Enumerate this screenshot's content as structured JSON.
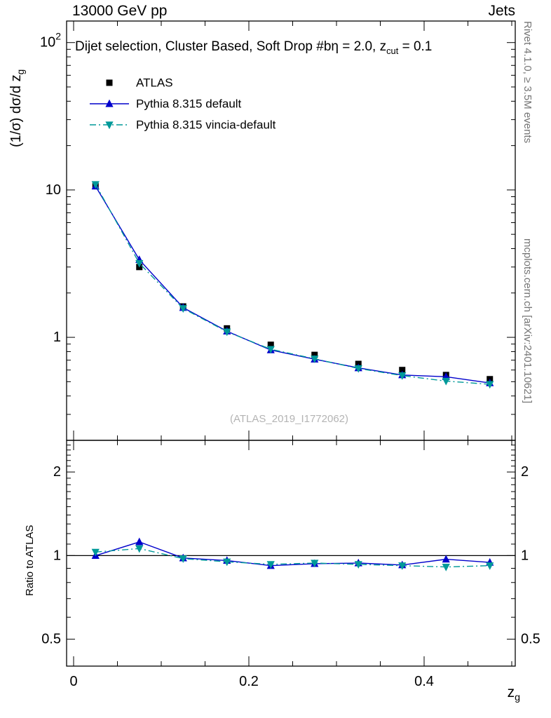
{
  "header": {
    "left": "13000 GeV pp",
    "right": "Jets"
  },
  "right_margin": {
    "top_text": "Rivet 4.1.0, ≥ 3.5M events",
    "bottom_text": "mcplots.cern.ch [arXiv:2401.10621]"
  },
  "watermark": "(ATLAS_2019_I1772062)",
  "main_panel": {
    "title_pre": "Dijet selection, Cluster Based, Soft Drop #bη = 2.0, z",
    "title_sub": "cut",
    "title_post": " = 0.1",
    "ylabel_pre": "(1/σ) dσ/d z",
    "ylabel_sub": "g"
  },
  "ratio_panel": {
    "ylabel": "Ratio to ATLAS"
  },
  "x_axis": {
    "label_pre": "z",
    "label_sub": "g"
  },
  "legend": [
    {
      "label": "ATLAS",
      "marker": "square",
      "color": "#000000",
      "line": "none"
    },
    {
      "label": "Pythia 8.315 default",
      "marker": "triangle-up",
      "color": "#0000cc",
      "line": "solid"
    },
    {
      "label": "Pythia 8.315 vincia-default",
      "marker": "triangle-down",
      "color": "#009999",
      "line": "dashdot"
    }
  ],
  "chart_data": [
    {
      "id": "main",
      "type": "line",
      "title": "Dijet selection, Cluster Based, Soft Drop #bη = 2.0, z_cut = 0.1",
      "xlabel": "z_g",
      "ylabel": "(1/σ) dσ/d z_g",
      "xscale": "linear",
      "yscale": "log",
      "xlim": [
        -0.008,
        0.504
      ],
      "ylim": [
        0.2,
        140
      ],
      "xticks": {
        "major": [
          0,
          0.2,
          0.4
        ],
        "labels": [
          "0",
          "0.2",
          "0.4"
        ],
        "minor_step": 0.05
      },
      "yticks": {
        "major": [
          1,
          10,
          100
        ],
        "labels": [
          "1",
          "10",
          "10^2"
        ]
      },
      "x": [
        0.025,
        0.075,
        0.125,
        0.175,
        0.225,
        0.275,
        0.325,
        0.375,
        0.425,
        0.475
      ],
      "series": [
        {
          "name": "ATLAS",
          "marker": "square",
          "color": "#000000",
          "line": "none",
          "values": [
            10.6,
            3.0,
            1.62,
            1.15,
            0.89,
            0.76,
            0.66,
            0.6,
            0.555,
            0.52
          ],
          "yerr": [
            0.35,
            0.12,
            0.06,
            0.04,
            0.03,
            0.025,
            0.02,
            0.018,
            0.016,
            0.015
          ]
        },
        {
          "name": "Pythia 8.315 default",
          "marker": "triangle-up",
          "color": "#0000cc",
          "line": "solid",
          "values": [
            10.6,
            3.36,
            1.59,
            1.1,
            0.82,
            0.71,
            0.62,
            0.555,
            0.54,
            0.49
          ]
        },
        {
          "name": "Pythia 8.315 vincia-default",
          "marker": "triangle-down",
          "color": "#009999",
          "line": "dashdot",
          "values": [
            10.9,
            3.18,
            1.57,
            1.09,
            0.83,
            0.715,
            0.615,
            0.55,
            0.505,
            0.48
          ]
        }
      ]
    },
    {
      "id": "ratio",
      "type": "line",
      "ylabel": "Ratio to ATLAS",
      "yscale": "log",
      "ylim": [
        0.4,
        2.6
      ],
      "yticks": {
        "major": [
          0.5,
          1,
          2
        ],
        "labels": [
          "0.5",
          "1",
          "2"
        ]
      },
      "refline": 1,
      "x": [
        0.025,
        0.075,
        0.125,
        0.175,
        0.225,
        0.275,
        0.325,
        0.375,
        0.425,
        0.475
      ],
      "series": [
        {
          "name": "Pythia 8.315 default",
          "marker": "triangle-up",
          "color": "#0000cc",
          "line": "solid",
          "values": [
            1.0,
            1.12,
            0.98,
            0.96,
            0.92,
            0.935,
            0.94,
            0.925,
            0.97,
            0.945
          ]
        },
        {
          "name": "Pythia 8.315 vincia-default",
          "marker": "triangle-down",
          "color": "#009999",
          "line": "dashdot",
          "values": [
            1.03,
            1.06,
            0.975,
            0.95,
            0.93,
            0.94,
            0.93,
            0.92,
            0.91,
            0.92
          ]
        }
      ]
    }
  ]
}
